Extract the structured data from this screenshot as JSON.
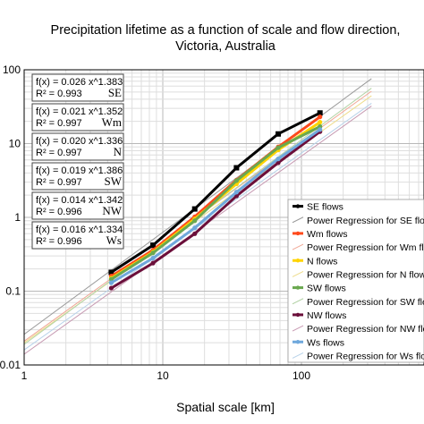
{
  "chart_data": {
    "type": "line",
    "title_line1": "Precipitation lifetime as a function of scale and flow direction,",
    "title_line2": "Victoria, Australia",
    "xlabel": "Spatial scale [km]",
    "ylabel": "",
    "x_scale": "log",
    "y_scale": "log",
    "xlim": [
      1,
      300
    ],
    "ylim": [
      0.01,
      100
    ],
    "grid": true,
    "x_tick_labels": [
      "1",
      "10",
      "100"
    ],
    "y_tick_labels": [
      "100",
      "10",
      "1",
      "0.1",
      "0.01"
    ],
    "x": [
      4.25,
      8.5,
      17,
      34,
      68,
      136
    ],
    "series": [
      {
        "name": "SE flows",
        "color": "#000000",
        "values": [
          0.18,
          0.42,
          1.3,
          4.7,
          13.5,
          26
        ]
      },
      {
        "name": "Wm flows",
        "color": "#ff4a1c",
        "values": [
          0.16,
          0.36,
          1.02,
          3.2,
          9.0,
          23
        ]
      },
      {
        "name": "N flows",
        "color": "#ffd400",
        "values": [
          0.15,
          0.34,
          0.95,
          2.85,
          8.2,
          19.5
        ]
      },
      {
        "name": "SW flows",
        "color": "#6aa84f",
        "values": [
          0.145,
          0.33,
          0.9,
          3.15,
          8.8,
          17
        ]
      },
      {
        "name": "NW flows",
        "color": "#6b0f3a",
        "values": [
          0.11,
          0.24,
          0.6,
          1.95,
          5.5,
          14.5
        ]
      },
      {
        "name": "Ws flows",
        "color": "#6fa8dc",
        "values": [
          0.13,
          0.28,
          0.72,
          2.2,
          6.2,
          15.5
        ]
      }
    ],
    "regressions": [
      {
        "name": "Power Regression for SE flows",
        "a": 0.026,
        "b": 1.383,
        "color": "#9a9a9a"
      },
      {
        "name": "Power Regression for Wm flows",
        "a": 0.021,
        "b": 1.352,
        "color": "#f0a896"
      },
      {
        "name": "Power Regression for N flows",
        "a": 0.02,
        "b": 1.336,
        "color": "#eedc8a"
      },
      {
        "name": "Power Regression for SW flows",
        "a": 0.019,
        "b": 1.386,
        "color": "#b4d3a6"
      },
      {
        "name": "Power Regression for NW flows",
        "a": 0.014,
        "b": 1.342,
        "color": "#c79ab2"
      },
      {
        "name": "Power Regression for Ws flows",
        "a": 0.016,
        "b": 1.334,
        "color": "#b7d2ea"
      }
    ],
    "equations": [
      {
        "fx": "f(x) = 0.026 x^1.383",
        "r2": "R² = 0.993",
        "dir": "SE"
      },
      {
        "fx": "f(x) = 0.021 x^1.352",
        "r2": "R² = 0.997",
        "dir": "Wm"
      },
      {
        "fx": "f(x) = 0.020 x^1.336",
        "r2": "R² = 0.997",
        "dir": "N"
      },
      {
        "fx": "f(x) = 0.019 x^1.386",
        "r2": "R² = 0.997",
        "dir": "SW"
      },
      {
        "fx": "f(x) = 0.014 x^1.342",
        "r2": "R² = 0.996",
        "dir": "NW"
      },
      {
        "fx": "f(x) = 0.016 x^1.334",
        "r2": "R² = 0.996",
        "dir": "Ws"
      }
    ],
    "legend": [
      {
        "label": "SE flows",
        "color": "#000000",
        "kind": "series"
      },
      {
        "label": "Power Regression for SE flows",
        "color": "#9a9a9a",
        "kind": "regression"
      },
      {
        "label": "Wm flows",
        "color": "#ff4a1c",
        "kind": "series"
      },
      {
        "label": "Power Regression for Wm flows",
        "color": "#f0a896",
        "kind": "regression"
      },
      {
        "label": "N flows",
        "color": "#ffd400",
        "kind": "series"
      },
      {
        "label": "Power Regression for N flows",
        "color": "#eedc8a",
        "kind": "regression"
      },
      {
        "label": "SW flows",
        "color": "#6aa84f",
        "kind": "series"
      },
      {
        "label": "Power Regression for SW flows",
        "color": "#b4d3a6",
        "kind": "regression"
      },
      {
        "label": "NW flows",
        "color": "#6b0f3a",
        "kind": "series"
      },
      {
        "label": "Power Regression for NW flows",
        "color": "#c79ab2",
        "kind": "regression"
      },
      {
        "label": "Ws flows",
        "color": "#6fa8dc",
        "kind": "series"
      },
      {
        "label": "Power Regression for Ws flows",
        "color": "#b7d2ea",
        "kind": "regression"
      }
    ],
    "legend_position": "right"
  }
}
